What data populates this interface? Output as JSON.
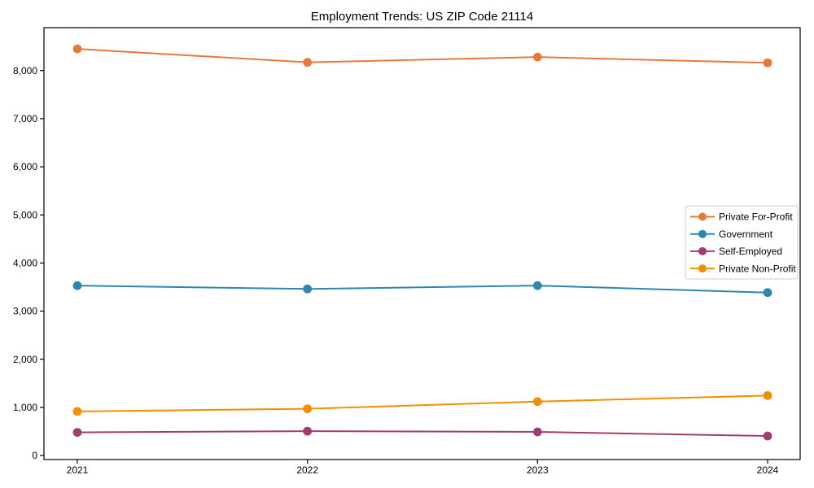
{
  "chart_data": {
    "type": "line",
    "title": "Employment Trends: US ZIP Code 21114",
    "xlabel": "",
    "ylabel": "",
    "categories": [
      "2021",
      "2022",
      "2023",
      "2024"
    ],
    "series": [
      {
        "name": "Private For-Profit",
        "color": "#E8793C",
        "values": [
          8450,
          8170,
          8280,
          8160
        ]
      },
      {
        "name": "Government",
        "color": "#2E86AB",
        "values": [
          3530,
          3460,
          3530,
          3385
        ]
      },
      {
        "name": "Self-Employed",
        "color": "#A23B72",
        "values": [
          480,
          505,
          490,
          405
        ]
      },
      {
        "name": "Private Non-Profit",
        "color": "#F18F01",
        "values": [
          915,
          970,
          1120,
          1245
        ]
      }
    ],
    "ylim": [
      0,
      8890
    ],
    "yticks": [
      0,
      1000,
      2000,
      3000,
      4000,
      5000,
      6000,
      7000,
      8000
    ],
    "ytick_labels": [
      "0",
      "1,000",
      "2,000",
      "3,000",
      "4,000",
      "5,000",
      "6,000",
      "7,000",
      "8,000"
    ],
    "legend_position": "right",
    "grid": false,
    "marker": "circle"
  }
}
